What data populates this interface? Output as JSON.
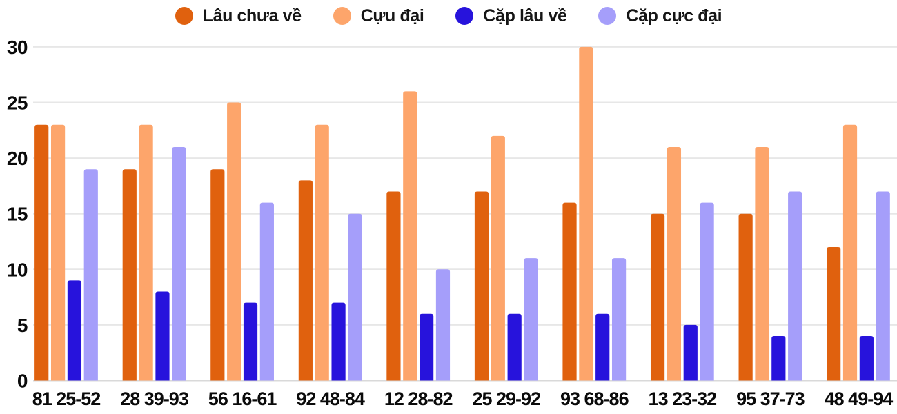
{
  "chart_data": {
    "type": "bar",
    "title": "",
    "xlabel": "",
    "ylabel": "",
    "categories": [
      "81 25-52",
      "28 39-93",
      "56 16-61",
      "92 48-84",
      "12 28-82",
      "25 29-92",
      "93 68-86",
      "13 23-32",
      "95 37-73",
      "48 49-94"
    ],
    "series": [
      {
        "name": "Lâu chưa về",
        "color": "#e0610e",
        "values": [
          23,
          19,
          19,
          18,
          17,
          17,
          16,
          15,
          15,
          12
        ]
      },
      {
        "name": "Cựu đại",
        "color": "#fda56b",
        "values": [
          23,
          23,
          25,
          23,
          26,
          22,
          30,
          21,
          21,
          23
        ]
      },
      {
        "name": "Cặp lâu về",
        "color": "#2713dc",
        "values": [
          9,
          8,
          7,
          7,
          6,
          6,
          6,
          5,
          4,
          4
        ]
      },
      {
        "name": "Cặp cực đại",
        "color": "#a59efa",
        "values": [
          19,
          21,
          16,
          15,
          10,
          11,
          11,
          16,
          17,
          17
        ]
      }
    ],
    "ylim": [
      0,
      30
    ],
    "yticks": [
      0,
      5,
      10,
      15,
      20,
      25,
      30
    ],
    "grid": true,
    "legend_position": "top"
  },
  "colors": {
    "background": "#ffffff",
    "gridline": "#e7e7e7",
    "baseline": "#d9d9d9",
    "axis_text": "#0a0a0a"
  }
}
